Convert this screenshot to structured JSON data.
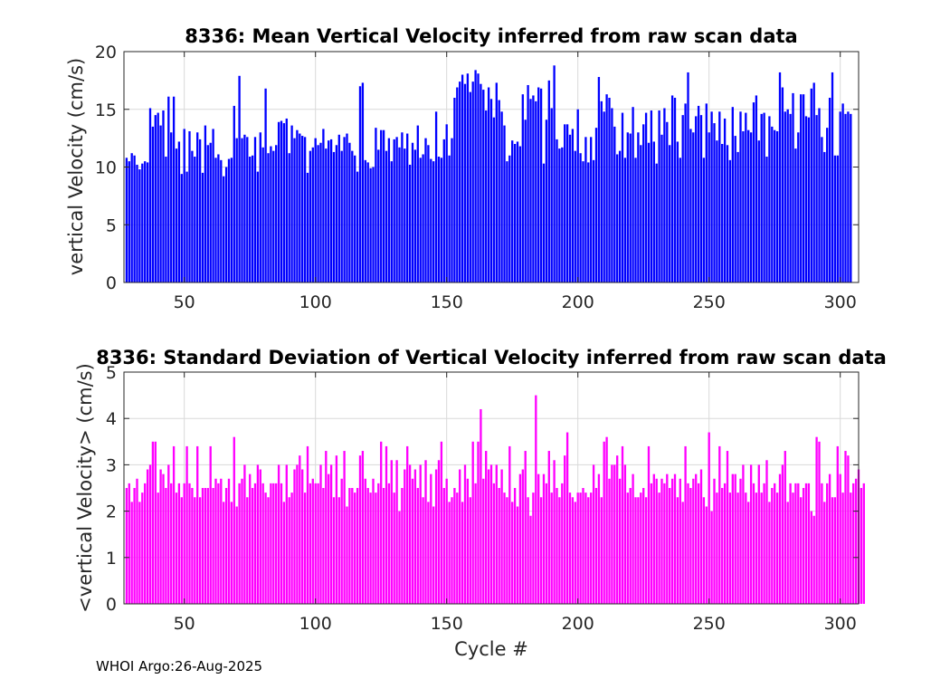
{
  "footer": "WHOI Argo:26-Aug-2025",
  "colors": {
    "top_bars": "#0000ff",
    "bottom_bars": "#ff00ff",
    "grid": "#d9d9d9",
    "axis": "#262626"
  },
  "chart_data": [
    {
      "type": "bar",
      "title": "8336: Mean Vertical Velocity inferred from raw scan data",
      "xlabel": "",
      "ylabel": "vertical Velocity (cm/s)",
      "xlim": [
        27,
        307
      ],
      "ylim": [
        0,
        20
      ],
      "xticks": [
        50,
        100,
        150,
        200,
        250,
        300
      ],
      "yticks": [
        0,
        5,
        10,
        15,
        20
      ],
      "x_start": 28,
      "values": [
        10.8,
        10.5,
        11.2,
        11.0,
        10.2,
        9.8,
        10.3,
        10.5,
        10.4,
        15.1,
        13.5,
        14.5,
        14.7,
        13.6,
        14.9,
        10.9,
        16.1,
        13.0,
        16.1,
        11.6,
        12.2,
        9.4,
        13.3,
        9.6,
        13.1,
        11.4,
        10.9,
        13.0,
        12.4,
        9.5,
        13.6,
        11.9,
        12.1,
        13.3,
        10.8,
        11.1,
        10.6,
        9.2,
        10.0,
        10.7,
        10.8,
        15.3,
        12.5,
        17.9,
        12.5,
        12.8,
        12.6,
        10.9,
        11.0,
        12.6,
        9.6,
        13.0,
        11.7,
        16.8,
        11.2,
        11.8,
        11.4,
        11.9,
        13.9,
        14.0,
        13.8,
        14.2,
        11.2,
        13.6,
        12.5,
        13.2,
        12.9,
        12.7,
        12.6,
        9.5,
        11.4,
        11.7,
        12.5,
        11.9,
        12.1,
        13.3,
        11.6,
        12.3,
        12.4,
        11.3,
        11.9,
        12.8,
        11.4,
        12.6,
        12.9,
        12.1,
        11.4,
        11.0,
        9.6,
        17.0,
        17.3,
        10.6,
        10.4,
        9.9,
        10.0,
        13.4,
        11.5,
        13.2,
        13.2,
        11.4,
        12.5,
        10.5,
        12.4,
        12.6,
        11.7,
        13.0,
        11.6,
        12.9,
        10.2,
        12.1,
        11.5,
        13.6,
        10.8,
        11.1,
        12.5,
        11.9,
        10.7,
        10.5,
        14.8,
        10.9,
        10.8,
        12.4,
        13.7,
        11.0,
        12.5,
        16.0,
        16.9,
        17.4,
        18.0,
        17.2,
        18.1,
        16.5,
        17.4,
        18.4,
        18.1,
        17.2,
        16.7,
        14.9,
        16.9,
        15.9,
        14.3,
        17.3,
        15.8,
        14.8,
        13.6,
        10.5,
        11.0,
        12.3,
        12.0,
        12.2,
        11.8,
        16.3,
        14.1,
        17.1,
        15.9,
        16.2,
        15.7,
        16.9,
        16.8,
        10.3,
        14.1,
        17.5,
        15.1,
        18.8,
        12.4,
        11.6,
        11.7,
        13.7,
        13.7,
        12.8,
        13.3,
        11.4,
        15.0,
        11.2,
        10.5,
        12.6,
        10.4,
        12.6,
        10.6,
        13.4,
        17.8,
        15.7,
        14.8,
        16.3,
        16.0,
        15.1,
        13.5,
        11.1,
        11.4,
        14.7,
        10.8,
        13.0,
        12.9,
        15.2,
        10.8,
        13.0,
        11.9,
        13.7,
        14.7,
        12.1,
        14.9,
        12.2,
        10.3,
        14.9,
        12.8,
        15.1,
        13.9,
        11.9,
        16.2,
        16.0,
        12.2,
        10.8,
        14.5,
        15.5,
        18.2,
        13.3,
        13.0,
        14.4,
        15.3,
        14.5,
        10.8,
        15.5,
        13.0,
        14.8,
        13.8,
        12.3,
        14.8,
        12.0,
        14.2,
        11.9,
        10.6,
        15.2,
        12.7,
        11.3,
        14.8,
        13.1,
        14.7,
        13.2,
        13.0,
        15.6,
        16.2,
        12.3,
        14.6,
        14.7,
        10.9,
        14.4,
        13.5,
        13.2,
        13.1,
        18.2,
        16.9,
        14.8,
        15.0,
        14.6,
        16.4,
        11.6,
        13.0,
        16.3,
        16.3,
        14.4,
        14.3,
        16.8,
        17.3,
        14.5,
        15.1,
        12.6,
        11.3,
        13.4,
        16.0,
        18.2,
        11.0,
        11.0,
        14.8,
        15.5,
        14.6,
        14.8,
        14.6
      ]
    },
    {
      "type": "bar",
      "title": "8336: Standard Deviation of Vertical Velocity inferred from raw scan data",
      "xlabel": "Cycle #",
      "ylabel": "<vertical Velocity> (cm/s)",
      "xlim": [
        27,
        307
      ],
      "ylim": [
        0,
        5
      ],
      "xticks": [
        50,
        100,
        150,
        200,
        250,
        300
      ],
      "yticks": [
        0,
        1,
        2,
        3,
        4,
        5
      ],
      "x_start": 28,
      "values": [
        2.5,
        2.6,
        2.2,
        2.5,
        2.7,
        2.2,
        2.4,
        2.6,
        2.9,
        3.0,
        3.5,
        3.5,
        2.4,
        2.9,
        2.8,
        2.5,
        3.0,
        2.6,
        3.4,
        2.4,
        2.6,
        2.3,
        2.6,
        3.4,
        2.6,
        2.5,
        2.3,
        3.4,
        2.3,
        2.5,
        2.5,
        2.5,
        3.4,
        2.5,
        2.7,
        2.6,
        2.7,
        2.2,
        2.5,
        2.7,
        2.2,
        3.6,
        2.1,
        2.6,
        2.7,
        3.0,
        2.3,
        2.8,
        2.5,
        2.6,
        3.0,
        2.9,
        2.6,
        2.4,
        2.3,
        2.6,
        2.6,
        2.6,
        3.0,
        2.6,
        2.2,
        3.0,
        2.3,
        2.4,
        2.9,
        3.0,
        3.2,
        2.9,
        2.4,
        3.4,
        2.6,
        2.7,
        2.6,
        2.6,
        3.0,
        2.5,
        3.3,
        2.8,
        3.0,
        2.3,
        3.2,
        2.3,
        2.7,
        3.3,
        2.1,
        2.5,
        2.5,
        2.4,
        2.5,
        3.2,
        3.3,
        2.7,
        2.5,
        2.4,
        2.7,
        2.4,
        2.6,
        3.5,
        2.5,
        3.4,
        2.6,
        3.1,
        2.4,
        3.1,
        2.0,
        2.5,
        2.9,
        3.4,
        3.0,
        2.7,
        2.9,
        2.5,
        3.0,
        2.3,
        3.1,
        2.2,
        2.8,
        2.1,
        2.9,
        3.1,
        3.5,
        2.5,
        2.7,
        2.2,
        2.3,
        2.5,
        2.4,
        2.9,
        2.2,
        3.0,
        2.7,
        2.3,
        3.5,
        2.6,
        3.5,
        4.2,
        2.7,
        3.3,
        2.9,
        3.0,
        2.6,
        3.0,
        2.5,
        2.9,
        2.4,
        2.3,
        3.4,
        2.2,
        2.5,
        2.1,
        2.8,
        2.9,
        3.3,
        2.3,
        1.9,
        2.4,
        4.5,
        2.8,
        2.3,
        2.8,
        2.6,
        3.3,
        2.4,
        3.1,
        2.5,
        2.3,
        2.6,
        3.2,
        3.7,
        2.4,
        2.3,
        2.2,
        2.4,
        2.4,
        2.5,
        2.4,
        2.3,
        2.4,
        3.0,
        2.5,
        2.8,
        2.3,
        3.5,
        3.6,
        2.7,
        3.0,
        3.0,
        3.2,
        2.7,
        3.4,
        3.0,
        2.4,
        2.5,
        2.8,
        2.3,
        2.3,
        2.4,
        2.5,
        2.3,
        3.4,
        2.6,
        2.8,
        2.7,
        2.4,
        2.7,
        2.6,
        2.8,
        2.5,
        2.7,
        2.8,
        2.3,
        2.7,
        2.2,
        3.4,
        2.6,
        2.5,
        2.7,
        2.8,
        2.6,
        2.9,
        2.3,
        2.1,
        3.7,
        2.0,
        2.7,
        2.4,
        3.4,
        2.5,
        2.6,
        3.3,
        2.4,
        2.8,
        2.8,
        2.4,
        2.7,
        3.0,
        2.4,
        2.2,
        3.0,
        2.6,
        2.4,
        3.0,
        2.4,
        2.6,
        3.1,
        2.2,
        2.5,
        2.6,
        2.4,
        2.8,
        3.0,
        3.3,
        2.2,
        2.6,
        2.4,
        2.6,
        2.6,
        2.3,
        2.5,
        2.6,
        2.6,
        2.0,
        1.9,
        3.6,
        3.5,
        2.6,
        2.2,
        2.6,
        2.8,
        2.3,
        2.3,
        3.4,
        2.8,
        2.4,
        3.3,
        3.2,
        2.4,
        2.6,
        2.7,
        2.9,
        2.5,
        2.6
      ]
    }
  ]
}
